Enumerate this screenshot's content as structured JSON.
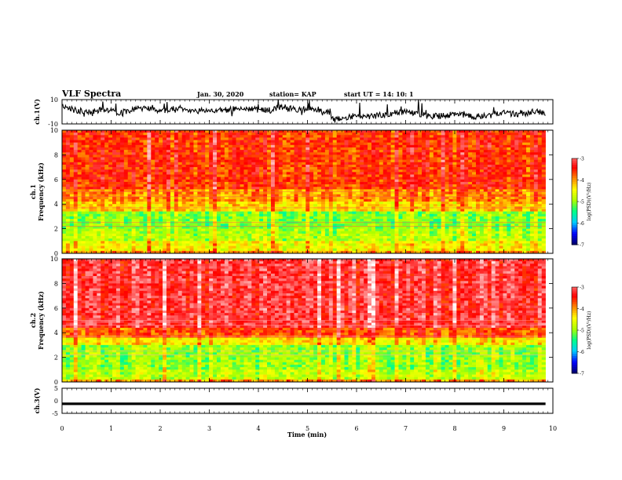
{
  "header": {
    "title": "VLF Spectra",
    "date": "Jan. 30, 2020",
    "station": "station= KAP",
    "start": "start  UT =   14: 10: 1"
  },
  "colors": {
    "axis": "#000000",
    "trace": "#000000",
    "colormap": [
      "#000066",
      "#0000ff",
      "#00ccff",
      "#00ff88",
      "#aaff00",
      "#ffff00",
      "#ff8800",
      "#ff0000",
      "#ff7777",
      "#ffffff"
    ]
  },
  "chart_data": [
    {
      "type": "line",
      "id": "ch1-waveform",
      "ylabel": "ch.1(V)",
      "ylim": [
        -10,
        10
      ],
      "xlim": [
        0,
        9.85
      ],
      "y_ticklabels": [
        "10",
        "-10"
      ],
      "x": [
        0.0,
        0.3,
        0.6,
        0.9,
        1.2,
        1.5,
        1.8,
        2.1,
        2.4,
        2.7,
        3.0,
        3.3,
        3.6,
        3.9,
        4.2,
        4.5,
        4.8,
        5.1,
        5.4,
        5.55,
        5.7,
        6.0,
        6.3,
        6.6,
        6.9,
        7.2,
        7.5,
        7.8,
        8.1,
        8.4,
        8.7,
        9.0,
        9.3,
        9.6,
        9.85
      ],
      "y": [
        4,
        1,
        0,
        2,
        -1,
        3,
        2,
        1,
        3,
        0,
        2,
        1,
        3,
        2,
        1,
        4,
        2,
        3,
        0,
        -7,
        -5,
        -3,
        -4,
        -2,
        0,
        -1,
        -4,
        -3,
        -2,
        -4,
        -3,
        -1,
        -2,
        0,
        -1
      ]
    },
    {
      "type": "heatmap",
      "id": "ch1-spectrogram",
      "ylabel": "ch.1\nFrequency (kHz)",
      "xlim": [
        0,
        9.85
      ],
      "ylim": [
        0,
        10
      ],
      "y_ticklabels": [
        "0",
        "2",
        "4",
        "6",
        "8",
        "10"
      ],
      "colorbar": {
        "label": "log(PSD)(V²/Hz)",
        "range": [
          -7,
          -3
        ],
        "ticklabels": [
          "-3",
          "-4",
          "-5",
          "-6",
          "-7"
        ]
      },
      "bands_khz": [
        {
          "range": [
            0,
            0.3
          ],
          "level": -4.0
        },
        {
          "range": [
            0.3,
            1.0
          ],
          "level": -4.5
        },
        {
          "range": [
            1.0,
            2.0
          ],
          "level": -4.9
        },
        {
          "range": [
            2.0,
            3.5
          ],
          "level": -5.1
        },
        {
          "range": [
            3.5,
            4.2
          ],
          "level": -4.3
        },
        {
          "range": [
            4.2,
            5.2
          ],
          "level": -4.0
        },
        {
          "range": [
            5.2,
            10.0
          ],
          "level": -3.6
        }
      ]
    },
    {
      "type": "heatmap",
      "id": "ch2-spectrogram",
      "ylabel": "ch.2\nFrequency (kHz)",
      "xlim": [
        0,
        9.85
      ],
      "ylim": [
        0,
        10
      ],
      "y_ticklabels": [
        "0",
        "2",
        "4",
        "6",
        "8",
        "10"
      ],
      "colorbar": {
        "label": "log(PSD)(V²/Hz)",
        "range": [
          -7,
          -3
        ],
        "ticklabels": [
          "-3",
          "-4",
          "-5",
          "-6",
          "-7"
        ]
      },
      "bands_khz": [
        {
          "range": [
            0,
            0.3
          ],
          "level": -4.0
        },
        {
          "range": [
            0.3,
            1.0
          ],
          "level": -4.8
        },
        {
          "range": [
            1.0,
            3.0
          ],
          "level": -5.0
        },
        {
          "range": [
            3.0,
            3.6
          ],
          "level": -4.4
        },
        {
          "range": [
            3.6,
            4.4
          ],
          "level": -3.7
        },
        {
          "range": [
            4.4,
            10.0
          ],
          "level": -3.2
        }
      ]
    },
    {
      "type": "line",
      "id": "ch3-waveform",
      "ylabel": "ch.3(V)",
      "ylim": [
        -5,
        5
      ],
      "xlim": [
        0,
        10
      ],
      "xlabel": "Time (min)",
      "y_ticklabels": [
        "5",
        "0",
        "-5"
      ],
      "x_ticks": [
        0,
        1,
        2,
        3,
        4,
        5,
        6,
        7,
        8,
        9,
        10
      ],
      "x": [
        0,
        9.85
      ],
      "y": [
        -1.2,
        -1.2
      ],
      "band_width_v": 1.0
    }
  ]
}
